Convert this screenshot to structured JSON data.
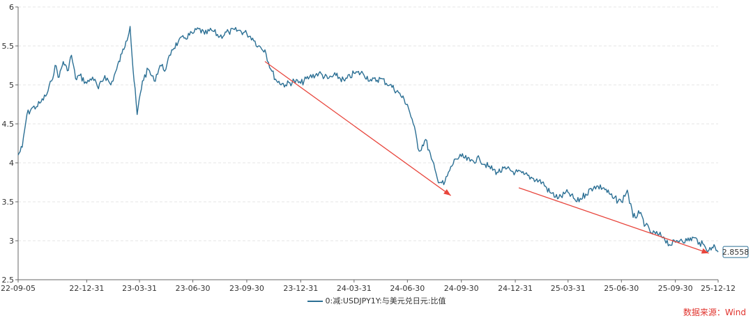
{
  "chart_data": {
    "type": "line",
    "series": [
      {
        "name": "0:减:USDJPY1Y:与美元兑日元:比值",
        "color": "#2b6f94",
        "points": [
          [
            "2022-09-05",
            4.1
          ],
          [
            "2022-09-12",
            4.2
          ],
          [
            "2022-09-20",
            4.62
          ],
          [
            "2022-09-28",
            4.7
          ],
          [
            "2022-10-06",
            4.72
          ],
          [
            "2022-10-14",
            4.78
          ],
          [
            "2022-10-24",
            4.88
          ],
          [
            "2022-11-01",
            5.05
          ],
          [
            "2022-11-07",
            5.25
          ],
          [
            "2022-11-14",
            5.1
          ],
          [
            "2022-11-21",
            5.3
          ],
          [
            "2022-11-28",
            5.18
          ],
          [
            "2022-12-05",
            5.38
          ],
          [
            "2022-12-12",
            5.08
          ],
          [
            "2022-12-19",
            5.12
          ],
          [
            "2022-12-31",
            5.02
          ],
          [
            "2023-01-10",
            5.1
          ],
          [
            "2023-01-20",
            4.95
          ],
          [
            "2023-01-31",
            5.12
          ],
          [
            "2023-02-10",
            5.0
          ],
          [
            "2023-02-20",
            5.2
          ],
          [
            "2023-03-01",
            5.4
          ],
          [
            "2023-03-08",
            5.56
          ],
          [
            "2023-03-15",
            5.75
          ],
          [
            "2023-03-20",
            5.2
          ],
          [
            "2023-03-27",
            4.62
          ],
          [
            "2023-04-05",
            5.05
          ],
          [
            "2023-04-15",
            5.2
          ],
          [
            "2023-04-25",
            5.05
          ],
          [
            "2023-05-05",
            5.25
          ],
          [
            "2023-05-15",
            5.2
          ],
          [
            "2023-05-25",
            5.45
          ],
          [
            "2023-06-05",
            5.55
          ],
          [
            "2023-06-15",
            5.6
          ],
          [
            "2023-06-30",
            5.66
          ],
          [
            "2023-07-10",
            5.72
          ],
          [
            "2023-07-20",
            5.65
          ],
          [
            "2023-08-01",
            5.7
          ],
          [
            "2023-08-15",
            5.62
          ],
          [
            "2023-08-30",
            5.68
          ],
          [
            "2023-09-15",
            5.7
          ],
          [
            "2023-09-30",
            5.66
          ],
          [
            "2023-10-10",
            5.6
          ],
          [
            "2023-10-20",
            5.5
          ],
          [
            "2023-10-31",
            5.45
          ],
          [
            "2023-11-10",
            5.2
          ],
          [
            "2023-11-20",
            5.05
          ],
          [
            "2023-12-05",
            5.0
          ],
          [
            "2023-12-20",
            5.05
          ],
          [
            "2023-12-31",
            5.02
          ],
          [
            "2024-01-15",
            5.1
          ],
          [
            "2024-01-31",
            5.15
          ],
          [
            "2024-02-15",
            5.08
          ],
          [
            "2024-02-29",
            5.12
          ],
          [
            "2024-03-15",
            5.05
          ],
          [
            "2024-03-31",
            5.15
          ],
          [
            "2024-04-15",
            5.15
          ],
          [
            "2024-04-30",
            5.05
          ],
          [
            "2024-05-15",
            5.08
          ],
          [
            "2024-05-31",
            5.0
          ],
          [
            "2024-06-15",
            4.9
          ],
          [
            "2024-06-30",
            4.75
          ],
          [
            "2024-07-10",
            4.5
          ],
          [
            "2024-07-20",
            4.15
          ],
          [
            "2024-07-31",
            4.3
          ],
          [
            "2024-08-10",
            4.05
          ],
          [
            "2024-08-20",
            3.8
          ],
          [
            "2024-08-31",
            3.72
          ],
          [
            "2024-09-10",
            3.9
          ],
          [
            "2024-09-20",
            4.05
          ],
          [
            "2024-09-30",
            4.08
          ],
          [
            "2024-10-15",
            4.02
          ],
          [
            "2024-10-31",
            4.05
          ],
          [
            "2024-11-15",
            3.95
          ],
          [
            "2024-11-30",
            3.88
          ],
          [
            "2024-12-15",
            3.92
          ],
          [
            "2024-12-31",
            3.88
          ],
          [
            "2025-01-15",
            3.85
          ],
          [
            "2025-01-31",
            3.8
          ],
          [
            "2025-02-15",
            3.75
          ],
          [
            "2025-02-28",
            3.62
          ],
          [
            "2025-03-15",
            3.55
          ],
          [
            "2025-03-31",
            3.62
          ],
          [
            "2025-04-15",
            3.5
          ],
          [
            "2025-04-30",
            3.6
          ],
          [
            "2025-05-15",
            3.7
          ],
          [
            "2025-05-31",
            3.68
          ],
          [
            "2025-06-15",
            3.55
          ],
          [
            "2025-06-30",
            3.5
          ],
          [
            "2025-07-10",
            3.65
          ],
          [
            "2025-07-20",
            3.3
          ],
          [
            "2025-07-31",
            3.35
          ],
          [
            "2025-08-10",
            3.2
          ],
          [
            "2025-08-20",
            3.1
          ],
          [
            "2025-08-31",
            3.08
          ],
          [
            "2025-09-10",
            3.05
          ],
          [
            "2025-09-20",
            2.95
          ],
          [
            "2025-09-30",
            2.98
          ],
          [
            "2025-10-10",
            3.02
          ],
          [
            "2025-10-20",
            3.0
          ],
          [
            "2025-10-31",
            3.04
          ],
          [
            "2025-11-10",
            2.98
          ],
          [
            "2025-11-20",
            2.92
          ],
          [
            "2025-11-30",
            2.88
          ],
          [
            "2025-12-05",
            2.95
          ],
          [
            "2025-12-12",
            2.8558
          ]
        ]
      }
    ],
    "x_ticks": [
      "22-09-05",
      "22-12-31",
      "23-03-31",
      "23-06-30",
      "23-09-30",
      "23-12-31",
      "24-03-31",
      "24-06-30",
      "24-09-30",
      "24-12-31",
      "25-03-31",
      "25-06-30",
      "25-09-30",
      "25-12-12"
    ],
    "xlim": [
      "2022-09-05",
      "2025-12-12"
    ],
    "y_ticks": [
      "2.5",
      "3",
      "3.5",
      "4",
      "4.5",
      "5",
      "5.5",
      "6"
    ],
    "ylim": [
      2.5,
      6
    ],
    "grid": true,
    "last_value_label": "2.8558",
    "annotations": [
      {
        "type": "arrow",
        "color": "#e8453c",
        "from": [
          "2023-10-31",
          5.3
        ],
        "to": [
          "2024-09-12",
          3.58
        ]
      },
      {
        "type": "arrow",
        "color": "#e8453c",
        "from": [
          "2025-01-06",
          3.68
        ],
        "to": [
          "2025-11-26",
          2.84
        ]
      }
    ],
    "legend_position": "bottom-center"
  },
  "legend_label": "0:减:USDJPY1Y:与美元兑日元:比值",
  "source_label": "数据来源：Wind"
}
